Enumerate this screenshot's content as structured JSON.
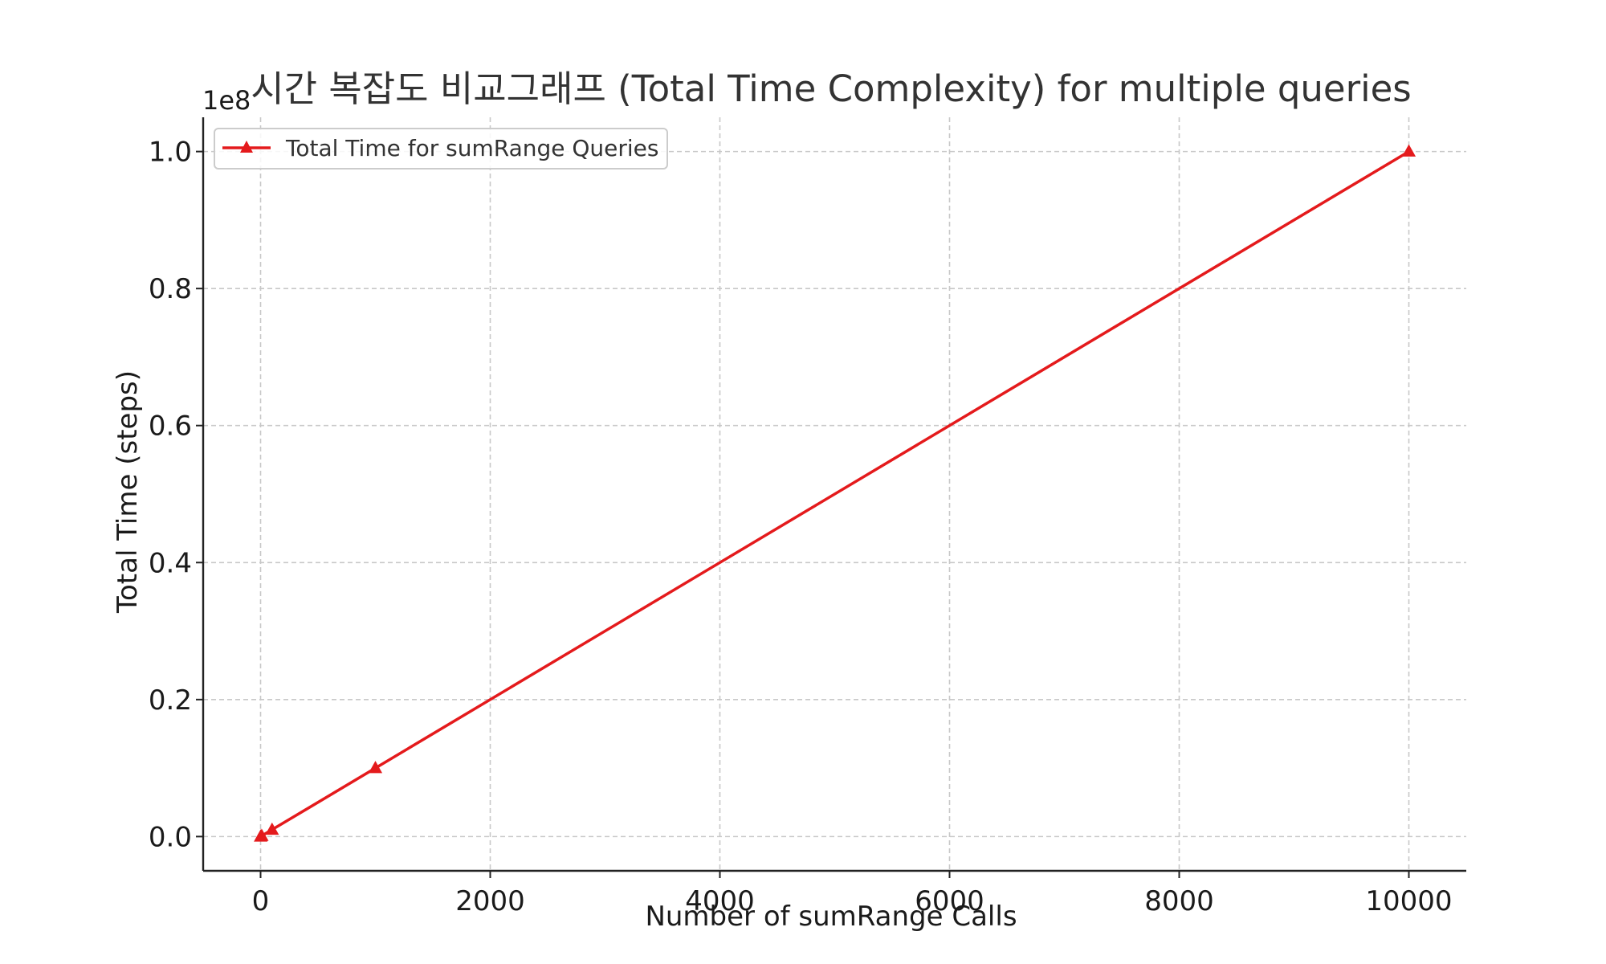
{
  "colors": {
    "series": "#e41a1c",
    "grid": "#c8c8c8",
    "text": "#1a1a1a"
  },
  "chart_data": {
    "type": "line",
    "title": "시간 복잡도 비교그래프 (Total Time Complexity) for multiple queries",
    "xlabel": "Number of sumRange Calls",
    "ylabel": "Total Time (steps)",
    "y_offset_label": "1e8",
    "xlim": [
      -500,
      10500
    ],
    "ylim": [
      -5000000,
      105000000
    ],
    "x_ticks": [
      0,
      2000,
      4000,
      6000,
      8000,
      10000
    ],
    "x_tick_labels": [
      "0",
      "2000",
      "4000",
      "6000",
      "8000",
      "10000"
    ],
    "y_ticks": [
      0,
      20000000,
      40000000,
      60000000,
      80000000,
      100000000
    ],
    "y_tick_labels": [
      "0.0",
      "0.2",
      "0.4",
      "0.6",
      "0.8",
      "1.0"
    ],
    "grid": true,
    "legend_position": "top-left",
    "series": [
      {
        "name": "Total Time for sumRange Queries",
        "color": "#e41a1c",
        "marker": "triangle",
        "x": [
          1,
          10,
          100,
          1000,
          10000
        ],
        "y": [
          10000,
          100000,
          1000000,
          10000000,
          100000000
        ]
      }
    ]
  }
}
